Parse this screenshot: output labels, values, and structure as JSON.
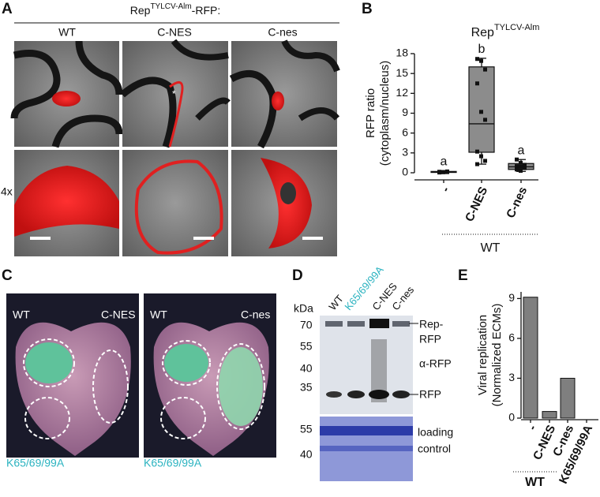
{
  "panel_labels": [
    "A",
    "B",
    "C",
    "D",
    "E"
  ],
  "panel_a": {
    "title": "Rep",
    "title_sup": "TYLCV-Alm",
    "title_suffix": "-RFP:",
    "columns": [
      "WT",
      "C-NES",
      "C-nes"
    ],
    "row_label": "4x"
  },
  "panel_c": {
    "top_labels": [
      "WT",
      "C-NES",
      "WT",
      "C-nes"
    ],
    "bottom_labels": [
      "K65/69/99A",
      "K65/69/99A"
    ]
  },
  "panel_d": {
    "lanes": [
      "WT",
      "K65/69/99A",
      "C-NES",
      "C-nes"
    ],
    "unit": "kDa",
    "markers_top": [
      "70",
      "55",
      "40",
      "35"
    ],
    "markers_bottom": [
      "55",
      "40"
    ],
    "right_labels": [
      "Rep-",
      "RFP",
      "α-RFP",
      "RFP",
      "loading",
      "control"
    ]
  },
  "chart_data": [
    {
      "type": "box",
      "title": "Rep",
      "title_sup": "TYLCV-Alm",
      "ylabel": [
        "RFP ratio",
        "(cytoplasm/nucleus)"
      ],
      "categories": [
        "-",
        "C-NES",
        "C-nes"
      ],
      "group_label": "WT",
      "annotations": [
        "a",
        "b",
        "a"
      ],
      "ylim": [
        0,
        18
      ],
      "yticks": [
        0,
        3,
        6,
        9,
        12,
        15,
        18
      ],
      "color": "#8c8c8c",
      "boxes": [
        {
          "min": 0,
          "q1": 0.05,
          "median": 0.1,
          "q3": 0.2,
          "max": 0.3,
          "points": [
            0.05,
            0.1,
            0.1,
            0.15,
            0.1,
            0.2,
            0.05,
            0.1
          ]
        },
        {
          "min": 1.3,
          "q1": 3.1,
          "median": 7.4,
          "q3": 16,
          "max": 17.3,
          "points": [
            17.2,
            16.9,
            15.6,
            13.5,
            9.2,
            8,
            3.2,
            2.5,
            1.8,
            1.3
          ]
        },
        {
          "min": 0.2,
          "q1": 0.5,
          "median": 0.9,
          "q3": 1.4,
          "max": 2,
          "points": [
            2,
            1.5,
            1.2,
            1,
            0.9,
            0.7,
            0.5,
            0.3
          ]
        }
      ]
    },
    {
      "type": "bar",
      "ylabel": [
        "Viral replication",
        "(Normalized ECMs)"
      ],
      "categories": [
        "-",
        "C-NES",
        "C-nes",
        "K65/69/99A"
      ],
      "group_label": "WT",
      "values": [
        9.1,
        0.5,
        3,
        0
      ],
      "color": "#7f7f7f",
      "ylim": [
        0,
        9.5
      ],
      "yticks": [
        0,
        3,
        6,
        9
      ]
    }
  ]
}
